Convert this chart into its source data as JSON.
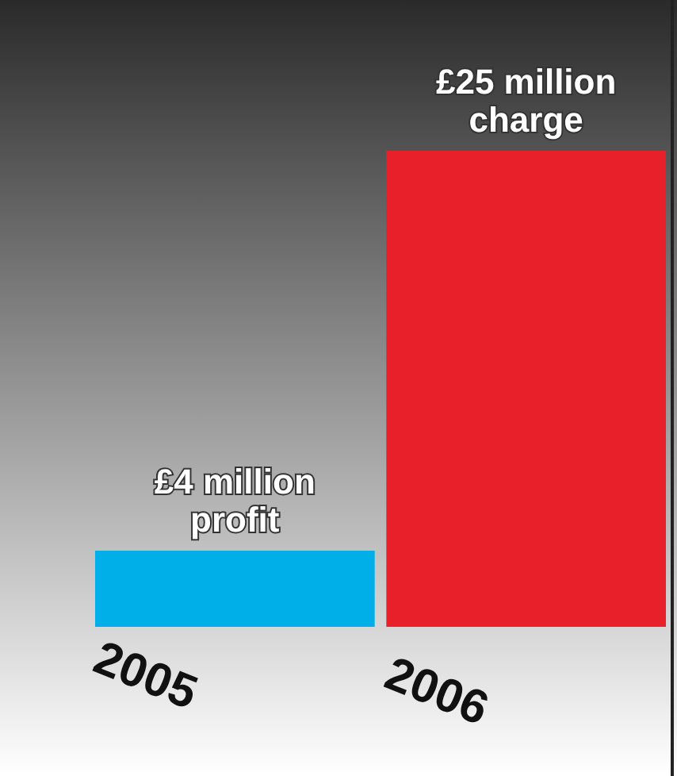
{
  "chart_data": {
    "type": "bar",
    "categories": [
      "2005",
      "2006"
    ],
    "values": [
      4,
      25
    ],
    "colors": [
      "#00aee8",
      "#e8202a"
    ],
    "value_labels": [
      "£4 million profit",
      "£25 million charge"
    ]
  }
}
